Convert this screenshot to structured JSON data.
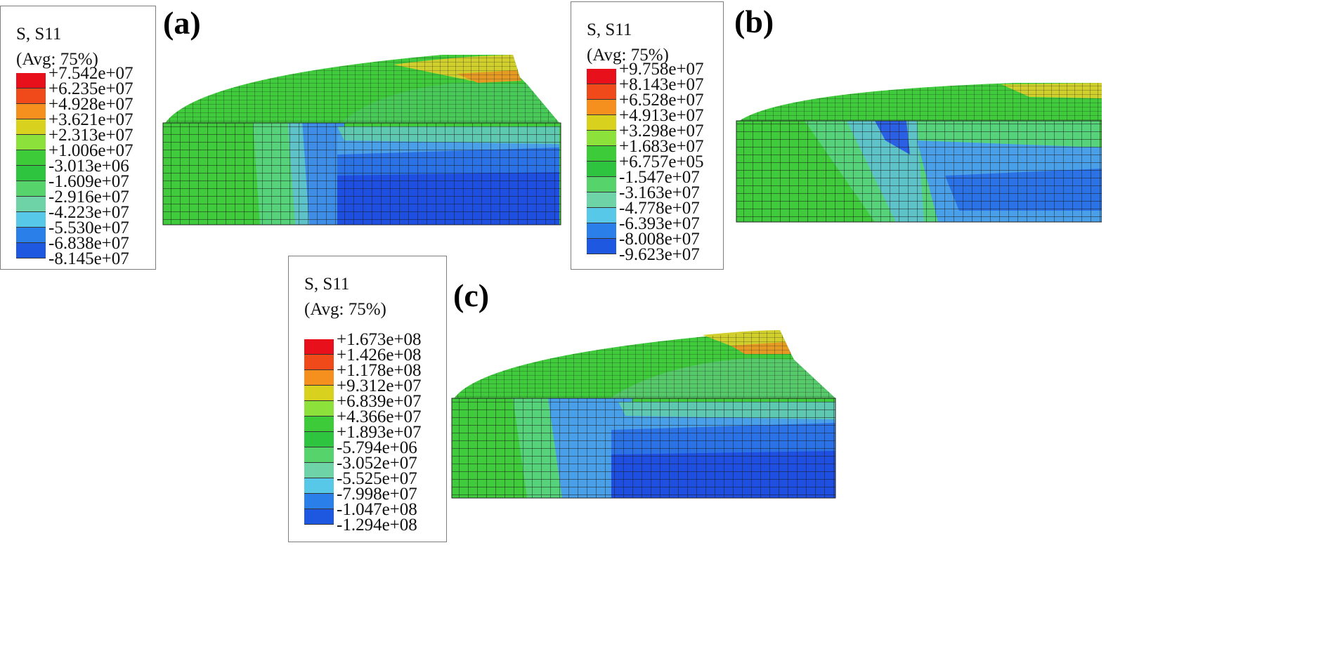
{
  "panels": [
    {
      "label": "(a)",
      "legend_title": "S, S11",
      "legend_avg": "(Avg: 75%)",
      "ticks": [
        "+7.542e+07",
        "+6.235e+07",
        "+4.928e+07",
        "+3.621e+07",
        "+2.313e+07",
        "+1.006e+07",
        "-3.013e+06",
        "-1.609e+07",
        "-2.916e+07",
        "-4.223e+07",
        "-5.530e+07",
        "-6.838e+07",
        "-8.145e+07"
      ]
    },
    {
      "label": "(b)",
      "legend_title": "S, S11",
      "legend_avg": "(Avg: 75%)",
      "ticks": [
        "+9.758e+07",
        "+8.143e+07",
        "+6.528e+07",
        "+4.913e+07",
        "+3.298e+07",
        "+1.683e+07",
        "+6.757e+05",
        "-1.547e+07",
        "-3.163e+07",
        "-4.778e+07",
        "-6.393e+07",
        "-8.008e+07",
        "-9.623e+07"
      ]
    },
    {
      "label": "(c)",
      "legend_title": "S, S11",
      "legend_avg": "(Avg: 75%)",
      "ticks": [
        "+1.673e+08",
        "+1.426e+08",
        "+1.178e+08",
        "+9.312e+07",
        "+6.839e+07",
        "+4.366e+07",
        "+1.893e+07",
        "-5.794e+06",
        "-3.052e+07",
        "-5.525e+07",
        "-7.998e+07",
        "-1.047e+08",
        "-1.294e+08"
      ]
    }
  ],
  "colormap": [
    "#e8101a",
    "#f04a1a",
    "#f5901f",
    "#d8d21f",
    "#8ce23a",
    "#3ecb3a",
    "#2ec43f",
    "#57d36b",
    "#6ed3a6",
    "#58c8e8",
    "#2b7fe8",
    "#1f58e0",
    "#1b3ee0"
  ]
}
